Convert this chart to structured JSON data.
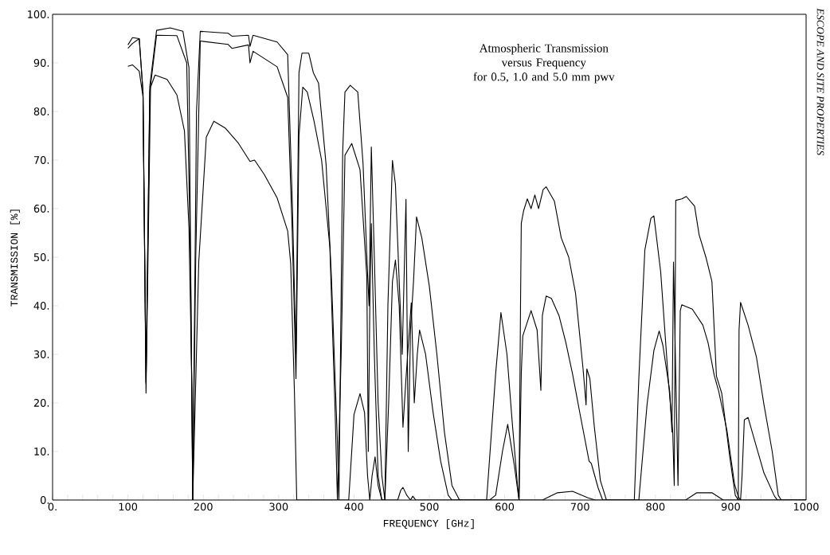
{
  "chart_data": {
    "type": "line",
    "title": "Atmospheric Transmission versus Frequency",
    "subtitle": "for 0.5, 1.0 and 5.0 mm pwv",
    "xlabel": "FREQUENCY [GHz]",
    "ylabel": "TRANSMISSION [%]",
    "annotations": [
      "ESCOPE AND SITE PROPERTIES"
    ],
    "xlim": [
      0,
      1000
    ],
    "ylim": [
      0,
      100
    ],
    "xticks": [
      {
        "value": 0,
        "label": "0."
      },
      {
        "value": 20,
        "label": null
      },
      {
        "value": 40,
        "label": null
      },
      {
        "value": 60,
        "label": null
      },
      {
        "value": 80,
        "label": null
      },
      100,
      {
        "value": 120,
        "label": null
      },
      {
        "value": 140,
        "label": null
      },
      {
        "value": 160,
        "label": null
      },
      {
        "value": 180,
        "label": null
      },
      200,
      {
        "value": 220,
        "label": null
      },
      {
        "value": 240,
        "label": null
      },
      {
        "value": 260,
        "label": null
      },
      {
        "value": 280,
        "label": null
      },
      300,
      {
        "value": 320,
        "label": null
      },
      {
        "value": 340,
        "label": null
      },
      {
        "value": 360,
        "label": null
      },
      {
        "value": 380,
        "label": null
      },
      400,
      {
        "value": 420,
        "label": null
      },
      {
        "value": 440,
        "label": null
      },
      {
        "value": 460,
        "label": null
      },
      {
        "value": 480,
        "label": null
      },
      500,
      {
        "value": 520,
        "label": null
      },
      {
        "value": 540,
        "label": null
      },
      {
        "value": 560,
        "label": null
      },
      {
        "value": 580,
        "label": null
      },
      600,
      {
        "value": 620,
        "label": null
      },
      {
        "value": 640,
        "label": null
      },
      {
        "value": 660,
        "label": null
      },
      {
        "value": 680,
        "label": null
      },
      700,
      {
        "value": 720,
        "label": null
      },
      {
        "value": 740,
        "label": null
      },
      {
        "value": 760,
        "label": null
      },
      {
        "value": 780,
        "label": null
      },
      800,
      {
        "value": 820,
        "label": null
      },
      {
        "value": 840,
        "label": null
      },
      {
        "value": 860,
        "label": null
      },
      {
        "value": 880,
        "label": null
      },
      900,
      {
        "value": 920,
        "label": null
      },
      {
        "value": 940,
        "label": null
      },
      {
        "value": 960,
        "label": null
      },
      {
        "value": 980,
        "label": null
      },
      1000
    ],
    "yticks": [
      {
        "value": 0,
        "label": "0."
      },
      {
        "value": 10,
        "label": "10."
      },
      {
        "value": 20,
        "label": "20."
      },
      {
        "value": 30,
        "label": "30."
      },
      {
        "value": 40,
        "label": "40."
      },
      {
        "value": 50,
        "label": "50."
      },
      {
        "value": 60,
        "label": "60."
      },
      {
        "value": 70,
        "label": "70."
      },
      {
        "value": 80,
        "label": "80."
      },
      {
        "value": 90,
        "label": "90."
      },
      {
        "value": 100,
        "label": "100."
      }
    ],
    "series": [
      {
        "color": "#000000",
        "x": [
          100,
          106,
          115,
          120,
          124,
          129,
          138,
          156,
          173,
          181,
          186,
          191,
          196,
          233,
          238,
          260,
          262,
          266,
          298,
          312,
          318,
          323,
          327,
          331,
          340,
          346,
          353,
          363,
          370,
          378,
          380,
          385,
          388,
          395,
          405,
          412,
          418,
          420,
          423,
          427,
          432,
          437,
          441,
          445,
          451,
          455,
          460,
          464,
          469,
          472,
          475,
          479,
          483,
          490,
          500,
          510,
          520,
          530,
          540,
          576,
          588,
          595,
          603,
          610,
          617,
          619,
          621,
          622,
          625,
          630,
          635,
          640,
          645,
          651,
          655,
          666,
          675,
          685,
          694,
          704,
          708,
          709,
          713,
          719,
          727,
          735,
          772,
          778,
          786,
          794,
          798,
          807,
          817,
          823,
          825,
          827,
          835,
          841,
          852,
          858,
          867,
          875,
          881,
          888,
          899,
          906,
          910,
          911,
          913,
          923,
          934,
          944,
          955,
          963,
          967,
          1000
        ],
        "values": [
          93.7,
          95.2,
          95,
          84,
          24.3,
          85.2,
          96.7,
          97.2,
          96.5,
          89,
          0,
          80,
          96.5,
          96.1,
          95.5,
          95.7,
          93.4,
          95.7,
          94.3,
          91.7,
          62,
          30,
          88,
          92,
          92,
          88,
          85.8,
          69,
          46,
          12,
          0,
          71.7,
          84,
          85.4,
          84,
          69.3,
          46.7,
          40,
          72.7,
          50,
          20,
          5,
          0,
          40,
          69.9,
          65,
          45,
          30,
          61.9,
          10,
          35,
          45,
          58.3,
          54,
          44,
          30,
          14,
          3,
          0,
          0,
          26,
          38.6,
          30,
          16,
          3,
          0,
          40,
          57,
          59.5,
          62,
          60,
          62.8,
          60,
          63.9,
          64.5,
          61.5,
          54,
          50,
          42.6,
          27,
          19.6,
          27,
          25,
          15,
          4,
          0,
          0,
          25,
          51.5,
          58,
          58.5,
          47,
          25,
          14,
          3,
          61.7,
          62,
          62.5,
          60.5,
          54.6,
          50,
          45,
          25.5,
          22,
          8.5,
          1,
          0,
          35,
          40.7,
          36,
          29.5,
          19.7,
          10,
          1,
          0,
          0
        ]
      },
      {
        "color": "#000000",
        "x": [
          100,
          106,
          115,
          120,
          124,
          129,
          138,
          165,
          178,
          183,
          186,
          190,
          196,
          233,
          238,
          260,
          262,
          266,
          280,
          298,
          312,
          318,
          323,
          327,
          332,
          338,
          347,
          357,
          368,
          375,
          378,
          383,
          385,
          388,
          397,
          408,
          417,
          419,
          421,
          423,
          427,
          432,
          437,
          441,
          446,
          451,
          455,
          460,
          465,
          469,
          476,
          480,
          484,
          487,
          495,
          505,
          515,
          525,
          530,
          580,
          588,
          597,
          604,
          613,
          619,
          622,
          624,
          635,
          643,
          648,
          650,
          655,
          662,
          672,
          681,
          690,
          700,
          712,
          715,
          724,
          730,
          778,
          789,
          798,
          805,
          810,
          819,
          822,
          824,
          830,
          833,
          835,
          849,
          863,
          870,
          878,
          884,
          895,
          905,
          910,
          913,
          915,
          918,
          923,
          934,
          944,
          958,
          962,
          1000
        ],
        "values": [
          93,
          94,
          95,
          84,
          24,
          84,
          95.7,
          95.6,
          90,
          50,
          0,
          50,
          94.5,
          93.8,
          93,
          93.7,
          90,
          92.4,
          91,
          89.2,
          82.9,
          55.4,
          25,
          75,
          85,
          84,
          78,
          70,
          52,
          18,
          0,
          30,
          46,
          71,
          73.4,
          68,
          46,
          10,
          40,
          56.9,
          30,
          5,
          0,
          0,
          20,
          45,
          49.4,
          40,
          15,
          25,
          40.6,
          20,
          30,
          35,
          30,
          18,
          8,
          1,
          0,
          0,
          1,
          10,
          15.6,
          6.9,
          0,
          26,
          33.8,
          39,
          35,
          22.6,
          38,
          42,
          41.5,
          38,
          32.5,
          26,
          17.7,
          8,
          7.5,
          2.5,
          0,
          0,
          19.8,
          30.8,
          34.8,
          31.8,
          22.4,
          14,
          49,
          3,
          39,
          40.2,
          39.3,
          36,
          32.3,
          25.7,
          22.4,
          14.3,
          3.3,
          0.7,
          0,
          5,
          16.5,
          17,
          11,
          5.6,
          0.8,
          0,
          0
        ]
      },
      {
        "color": "#000000",
        "x": [
          100,
          106,
          115,
          120,
          124,
          130,
          136,
          152,
          165,
          175,
          181,
          185,
          186,
          194,
          204,
          214,
          229,
          246,
          262,
          268,
          281,
          298,
          312,
          316,
          321,
          324,
          393,
          400,
          408,
          414,
          418,
          421,
          424,
          428,
          432,
          437,
          458,
          462,
          465,
          470,
          475,
          478,
          482,
          650,
          670,
          690,
          710,
          720,
          840,
          855,
          875,
          890,
          1000
        ],
        "values": [
          89.3,
          89.6,
          88.3,
          83,
          22,
          85,
          87.5,
          86.6,
          83.4,
          76,
          56,
          22.6,
          0,
          49,
          74.7,
          78,
          76.6,
          73.6,
          69.7,
          70,
          67,
          62.2,
          55.4,
          48.7,
          22,
          0,
          0,
          17.6,
          21.9,
          18,
          5,
          0,
          5,
          8.9,
          3,
          0,
          0,
          2,
          2.6,
          1,
          0,
          0.8,
          0,
          0,
          1.5,
          1.8,
          0.5,
          0,
          0,
          1.5,
          1.5,
          0,
          0
        ]
      }
    ]
  }
}
